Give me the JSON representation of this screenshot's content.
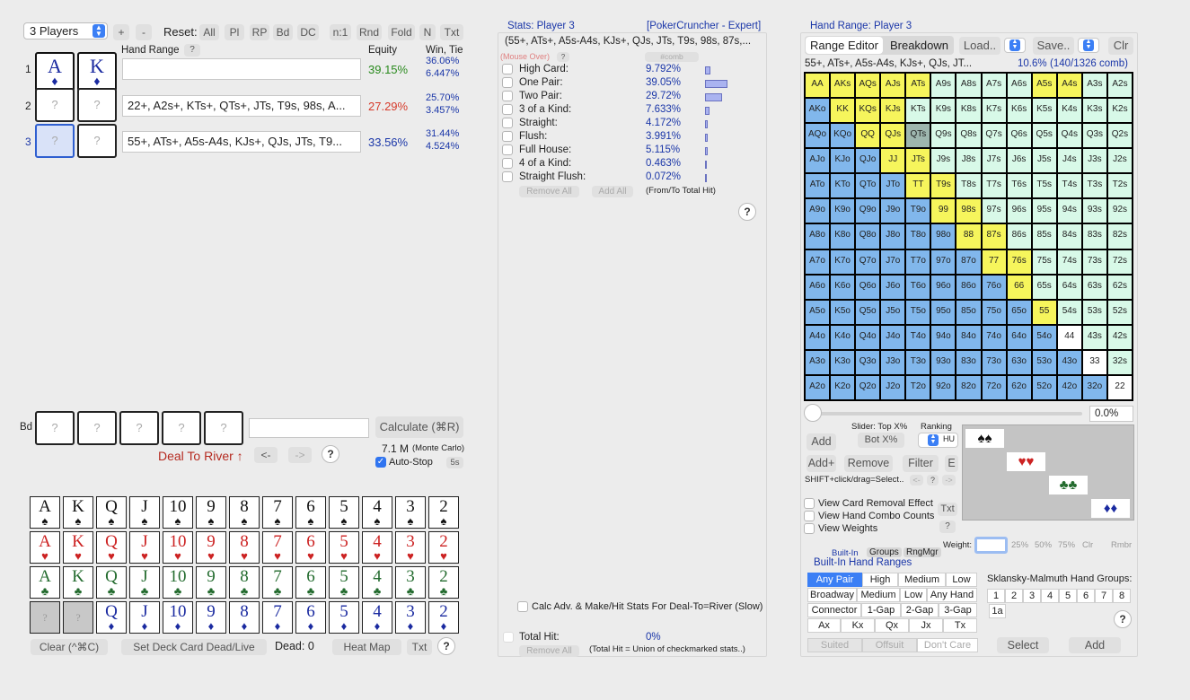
{
  "players": {
    "select_value": "3 Players",
    "plus": "+",
    "minus": "-"
  },
  "reset": {
    "label": "Reset:",
    "buttons": [
      "All",
      "Pl",
      "RP",
      "Bd",
      "DC",
      "n:1",
      "Rnd",
      "Fold",
      "N",
      "Txt"
    ]
  },
  "columns": {
    "hand_range": "Hand Range",
    "help": "?",
    "equity": "Equity",
    "win_tie": "Win, Tie"
  },
  "rows": [
    {
      "num": "1",
      "c1": {
        "rank": "A",
        "suit": "♦"
      },
      "c2": {
        "rank": "K",
        "suit": "♦"
      },
      "range": "",
      "equity": "39.15%",
      "win": "36.06%",
      "tie": "6.447%"
    },
    {
      "num": "2",
      "c1": {
        "rank": "?"
      },
      "c2": {
        "rank": "?"
      },
      "range": "22+, A2s+, KTs+, QTs+, JTs, T9s, 98s, A...",
      "equity": "27.29%",
      "win": "25.70%",
      "tie": "3.457%"
    },
    {
      "num": "3",
      "c1": {
        "rank": "?"
      },
      "c2": {
        "rank": "?"
      },
      "range": "55+, ATs+, A5s-A4s, KJs+, QJs, JTs, T9...",
      "equity": "33.56%",
      "win": "31.44%",
      "tie": "4.524%"
    }
  ],
  "board": {
    "label": "Bd",
    "slots": [
      "?",
      "?",
      "?",
      "?",
      "?"
    ],
    "input": "",
    "calculate": "Calculate (⌘R)",
    "count": "7.1 M",
    "method": "(Monte Carlo)",
    "deal": "Deal To River ↑",
    "prev": "<-",
    "next": "->",
    "help": "?",
    "autostop": "Auto-Stop",
    "autostop_time": "5s"
  },
  "deck": {
    "rows": [
      {
        "suit": "♠",
        "color": "#111",
        "ranks": [
          "A",
          "K",
          "Q",
          "J",
          "10",
          "9",
          "8",
          "7",
          "6",
          "5",
          "4",
          "3",
          "2"
        ]
      },
      {
        "suit": "♥",
        "color": "#cc2222",
        "ranks": [
          "A",
          "K",
          "Q",
          "J",
          "10",
          "9",
          "8",
          "7",
          "6",
          "5",
          "4",
          "3",
          "2"
        ]
      },
      {
        "suit": "♣",
        "color": "#236b2e",
        "ranks": [
          "A",
          "K",
          "Q",
          "J",
          "10",
          "9",
          "8",
          "7",
          "6",
          "5",
          "4",
          "3",
          "2"
        ]
      },
      {
        "suit": "♦",
        "color": "#1a2aa0",
        "ranks": [
          "?",
          "?",
          "Q",
          "J",
          "10",
          "9",
          "8",
          "7",
          "6",
          "5",
          "4",
          "3",
          "2"
        ]
      }
    ],
    "clear": "Clear (^⌘C)",
    "set_dead": "Set Deck Card Dead/Live",
    "dead": "Dead: 0",
    "heatmap": "Heat Map",
    "txt": "Txt",
    "help": "?"
  },
  "stats": {
    "title": "Stats: Player 3",
    "source": "[PokerCruncher - Expert]",
    "range": "(55+, ATs+, A5s-A4s, KJs+, QJs, JTs, T9s, 98s, 87s,...",
    "mouse_over": "(Mouse Over)",
    "help": "?",
    "comb": "#comb",
    "items": [
      {
        "name": "High Card:",
        "pct": "9.792%",
        "val": 9.792
      },
      {
        "name": "One Pair:",
        "pct": "39.05%",
        "val": 39.05
      },
      {
        "name": "Two Pair:",
        "pct": "29.72%",
        "val": 29.72
      },
      {
        "name": "3 of a Kind:",
        "pct": "7.633%",
        "val": 7.633
      },
      {
        "name": "Straight:",
        "pct": "4.172%",
        "val": 4.172
      },
      {
        "name": "Flush:",
        "pct": "3.991%",
        "val": 3.991
      },
      {
        "name": "Full House:",
        "pct": "5.115%",
        "val": 5.115
      },
      {
        "name": "4 of a Kind:",
        "pct": "0.463%",
        "val": 0.463
      },
      {
        "name": "Straight Flush:",
        "pct": "0.072%",
        "val": 0.072
      }
    ],
    "remove_all": "Remove All",
    "add_all": "Add All",
    "from_to": "(From/To Total Hit)",
    "help2": "?",
    "calc_adv": "Calc Adv. & Make/Hit Stats For Deal-To=River (Slow)",
    "total_hit": "Total Hit:",
    "total_pct": "0%",
    "remove_all2": "Remove All",
    "union": "(Total Hit = Union of checkmarked stats..)"
  },
  "range": {
    "title": "Hand Range: Player 3",
    "tabs": [
      "Range Editor",
      "Breakdown"
    ],
    "load": "Load..",
    "save": "Save..",
    "clr": "Clr",
    "text": "55+, ATs+, A5s-A4s, KJs+, QJs, JT...",
    "pct": "10.6%",
    "combos": "(140/1326 comb)",
    "grid": [
      [
        "AA",
        "AKs",
        "AQs",
        "AJs",
        "ATs",
        "A9s",
        "A8s",
        "A7s",
        "A6s",
        "A5s",
        "A4s",
        "A3s",
        "A2s"
      ],
      [
        "AKo",
        "KK",
        "KQs",
        "KJs",
        "KTs",
        "K9s",
        "K8s",
        "K7s",
        "K6s",
        "K5s",
        "K4s",
        "K3s",
        "K2s"
      ],
      [
        "AQo",
        "KQo",
        "QQ",
        "QJs",
        "QTs",
        "Q9s",
        "Q8s",
        "Q7s",
        "Q6s",
        "Q5s",
        "Q4s",
        "Q3s",
        "Q2s"
      ],
      [
        "AJo",
        "KJo",
        "QJo",
        "JJ",
        "JTs",
        "J9s",
        "J8s",
        "J7s",
        "J6s",
        "J5s",
        "J4s",
        "J3s",
        "J2s"
      ],
      [
        "ATo",
        "KTo",
        "QTo",
        "JTo",
        "TT",
        "T9s",
        "T8s",
        "T7s",
        "T6s",
        "T5s",
        "T4s",
        "T3s",
        "T2s"
      ],
      [
        "A9o",
        "K9o",
        "Q9o",
        "J9o",
        "T9o",
        "99",
        "98s",
        "97s",
        "96s",
        "95s",
        "94s",
        "93s",
        "92s"
      ],
      [
        "A8o",
        "K8o",
        "Q8o",
        "J8o",
        "T8o",
        "98o",
        "88",
        "87s",
        "86s",
        "85s",
        "84s",
        "83s",
        "82s"
      ],
      [
        "A7o",
        "K7o",
        "Q7o",
        "J7o",
        "T7o",
        "97o",
        "87o",
        "77",
        "76s",
        "75s",
        "74s",
        "73s",
        "72s"
      ],
      [
        "A6o",
        "K6o",
        "Q6o",
        "J6o",
        "T6o",
        "96o",
        "86o",
        "76o",
        "66",
        "65s",
        "64s",
        "63s",
        "62s"
      ],
      [
        "A5o",
        "K5o",
        "Q5o",
        "J5o",
        "T5o",
        "95o",
        "85o",
        "75o",
        "65o",
        "55",
        "54s",
        "53s",
        "52s"
      ],
      [
        "A4o",
        "K4o",
        "Q4o",
        "J4o",
        "T4o",
        "94o",
        "84o",
        "74o",
        "64o",
        "54o",
        "44",
        "43s",
        "42s"
      ],
      [
        "A3o",
        "K3o",
        "Q3o",
        "J3o",
        "T3o",
        "93o",
        "83o",
        "73o",
        "63o",
        "53o",
        "43o",
        "33",
        "32s"
      ],
      [
        "A2o",
        "K2o",
        "Q2o",
        "J2o",
        "T2o",
        "92o",
        "82o",
        "72o",
        "62o",
        "52o",
        "42o",
        "32o",
        "22"
      ]
    ],
    "slider_pct": "0.0%",
    "slider_top": "Slider: Top X%",
    "ranking": "Ranking",
    "ranking_val": "HU",
    "add": "Add",
    "bot": "Bot X%",
    "add_plus": "Add+",
    "remove": "Remove",
    "filter": "Filter",
    "e": "E",
    "shift_hint": "SHIFT+click/drag=Select..",
    "nav_prev": "<-",
    "nav_help": "?",
    "nav_next": "->",
    "suits": [
      {
        "g": "♠♠",
        "color": "#111"
      },
      {
        "g": "♥♥",
        "color": "#cc2222"
      },
      {
        "g": "♣♣",
        "color": "#236b2e"
      },
      {
        "g": "♦♦",
        "color": "#1a2aa0"
      }
    ],
    "view_removal": "View Card Removal Effect",
    "view_combos": "View Hand Combo Counts",
    "view_weights": "View Weights",
    "txt": "Txt",
    "help": "?",
    "weight_label": "Weight:",
    "weights": [
      "25%",
      "50%",
      "75%",
      "Clr",
      "Rmbr"
    ],
    "builtin_tabs": [
      "Built-In",
      "Groups",
      "RngMgr"
    ],
    "builtin_title": "Built-In Hand Ranges",
    "pairs": [
      "Any Pair",
      "High",
      "Medium",
      "Low"
    ],
    "broadway": [
      "Broadway",
      "Medium",
      "Low",
      "Any Hand"
    ],
    "connectors": [
      "Connector",
      "1-Gap",
      "2-Gap",
      "3-Gap"
    ],
    "kickers": [
      "Ax",
      "Kx",
      "Qx",
      "Jx",
      "Tx"
    ],
    "sklansky": "Sklansky-Malmuth Hand Groups:",
    "groups": [
      "1",
      "2",
      "3",
      "4",
      "5",
      "6",
      "7",
      "8",
      "1a"
    ],
    "suited": [
      "Suited",
      "Offsuit",
      "Don't Care"
    ],
    "select": "Select",
    "add2": "Add",
    "help2": "?"
  }
}
